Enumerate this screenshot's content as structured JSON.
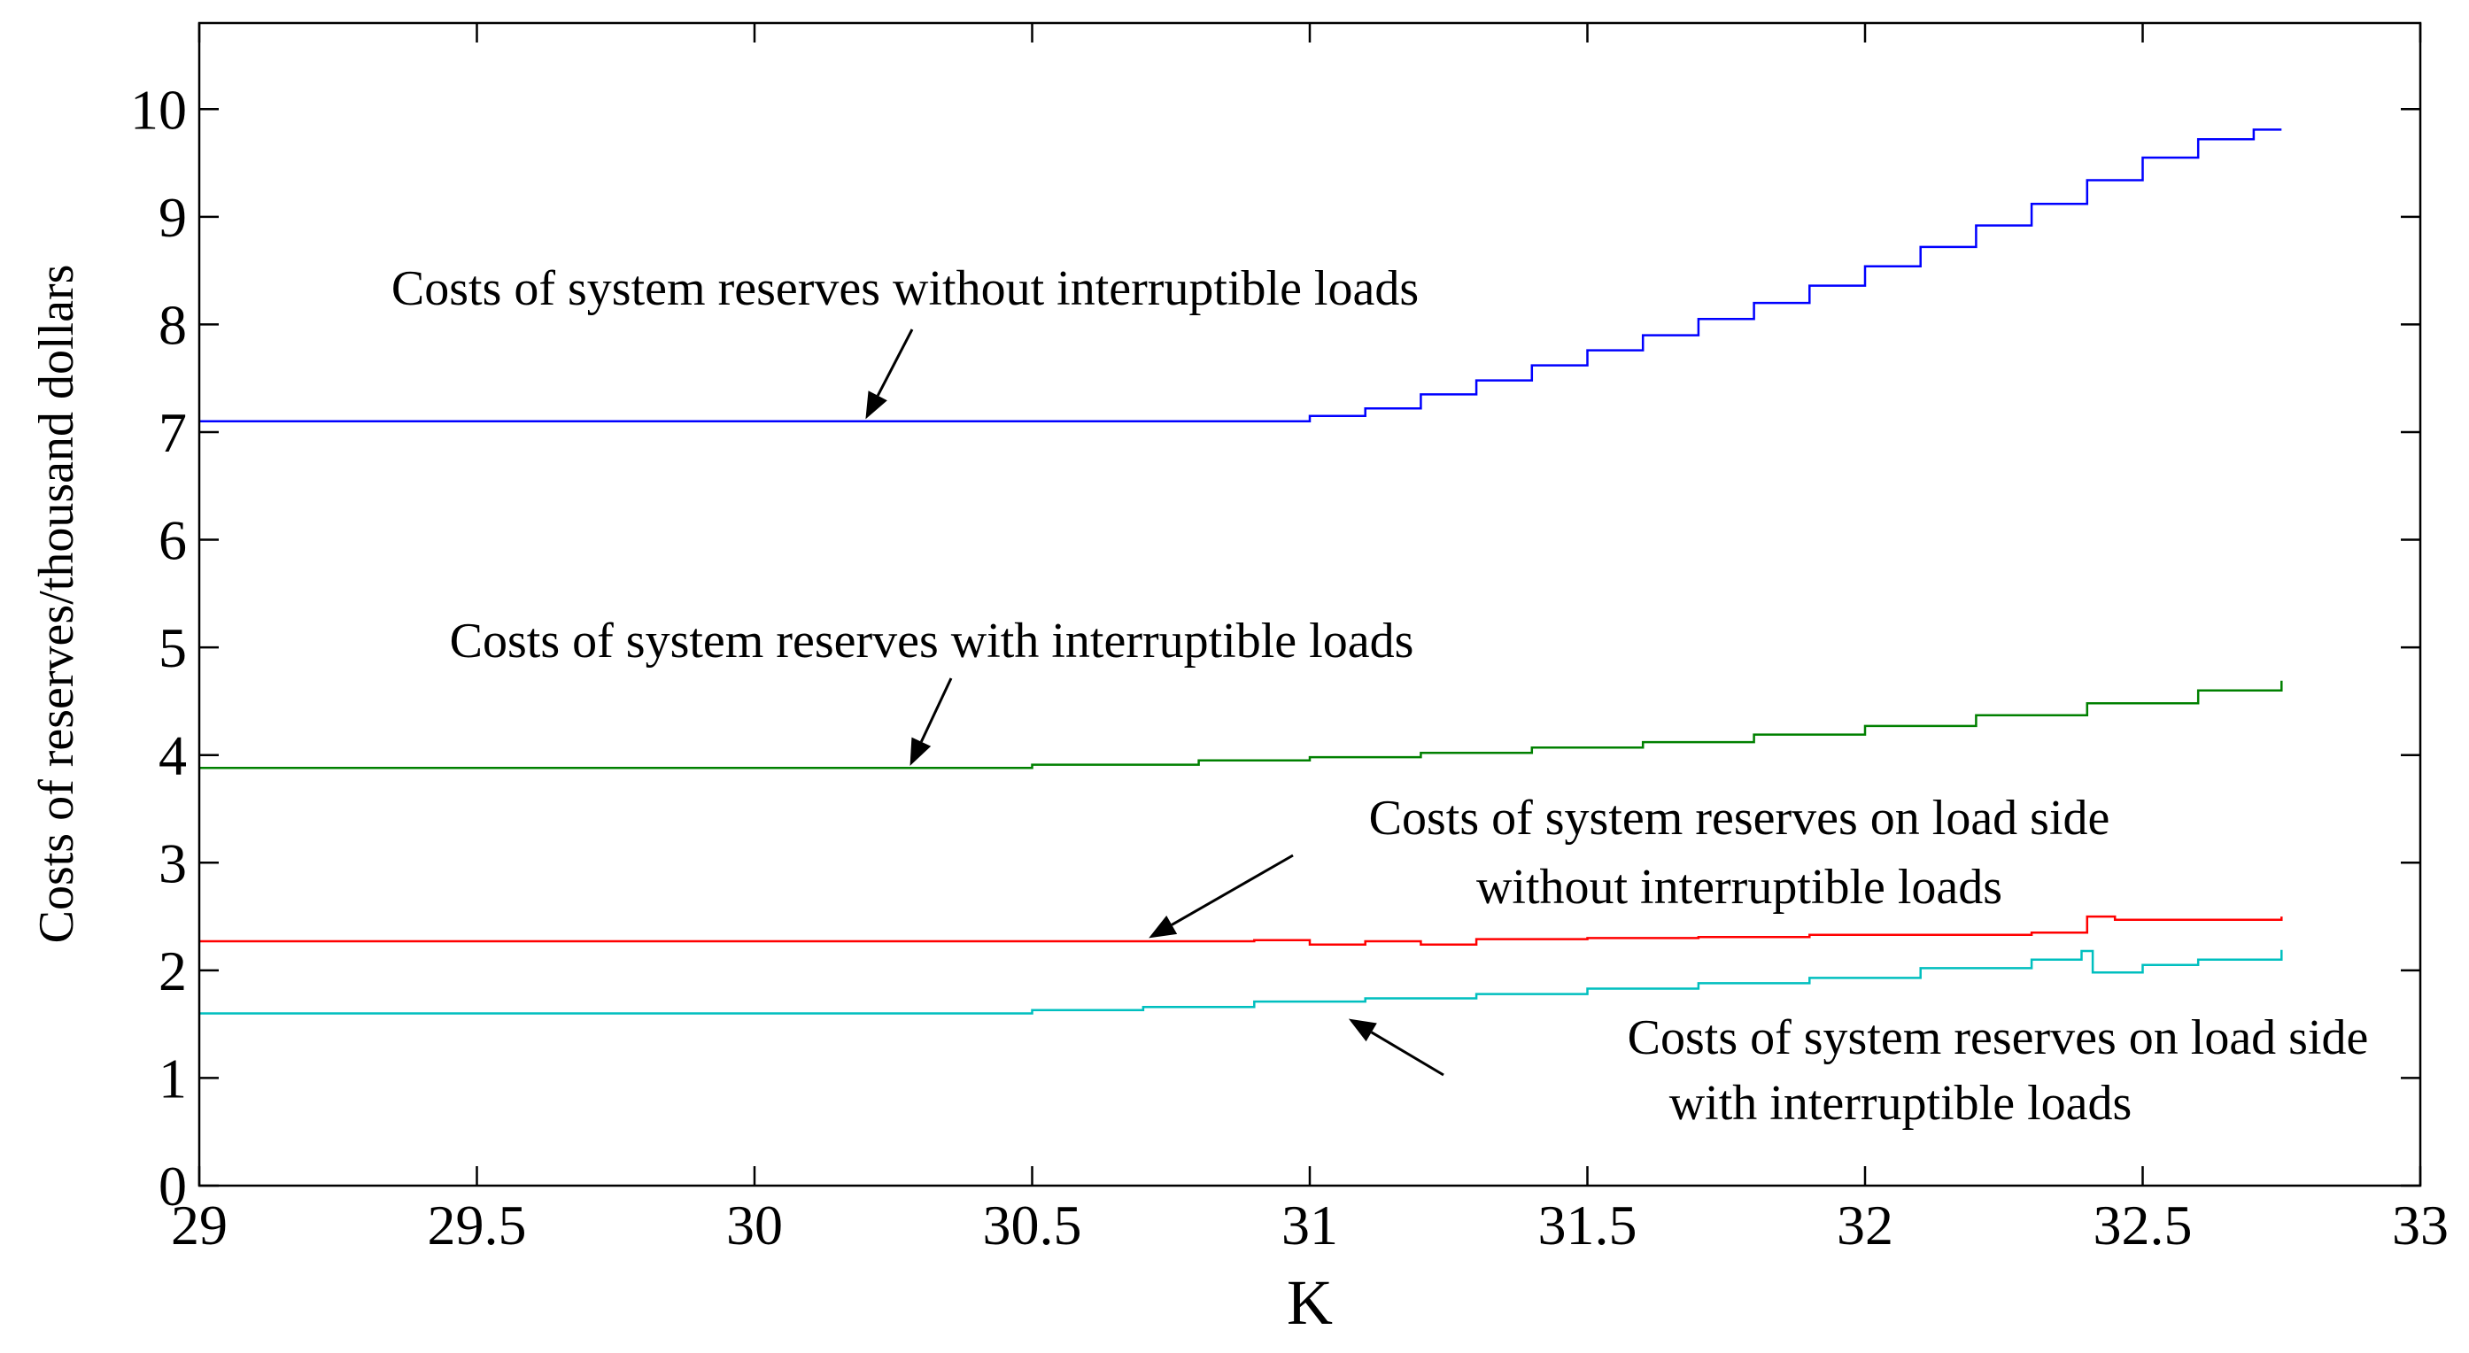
{
  "chart_data": {
    "type": "line",
    "title": "",
    "xlabel": "K",
    "ylabel": "Costs of reserves/thousand dollars",
    "xlim": [
      29,
      33
    ],
    "ylim": [
      0,
      10.8
    ],
    "xticks": [
      29,
      29.5,
      30,
      30.5,
      31,
      31.5,
      32,
      32.5,
      33
    ],
    "xtick_labels": [
      "29",
      "29.5",
      "30",
      "30.5",
      "31",
      "31.5",
      "32",
      "32.5",
      "33"
    ],
    "yticks": [
      0,
      1,
      2,
      3,
      4,
      5,
      6,
      7,
      8,
      9,
      10
    ],
    "ytick_labels": [
      "0",
      "1",
      "2",
      "3",
      "4",
      "5",
      "6",
      "7",
      "8",
      "9",
      "10"
    ],
    "grid": false,
    "series": [
      {
        "name": "Costs of system reserves without interruptible loads",
        "color": "#0000ff",
        "x": [
          29,
          30.95,
          31.0,
          31.1,
          31.2,
          31.3,
          31.4,
          31.5,
          31.6,
          31.7,
          31.8,
          31.9,
          32.0,
          32.1,
          32.2,
          32.3,
          32.4,
          32.5,
          32.6,
          32.7,
          32.75
        ],
        "y": [
          7.1,
          7.1,
          7.15,
          7.22,
          7.35,
          7.48,
          7.62,
          7.76,
          7.9,
          8.05,
          8.2,
          8.36,
          8.54,
          8.72,
          8.92,
          9.12,
          9.34,
          9.55,
          9.72,
          9.81,
          9.81
        ]
      },
      {
        "name": "Costs of system reserves with interruptible loads",
        "color": "#008000",
        "x": [
          29,
          30.2,
          30.5,
          30.8,
          31.0,
          31.2,
          31.4,
          31.6,
          31.8,
          32.0,
          32.2,
          32.4,
          32.6,
          32.75
        ],
        "y": [
          3.88,
          3.88,
          3.91,
          3.95,
          3.98,
          4.02,
          4.07,
          4.12,
          4.19,
          4.27,
          4.37,
          4.48,
          4.6,
          4.69
        ]
      },
      {
        "name": "Costs of system reserves on load side without interruptible loads",
        "color": "#ff0000",
        "x": [
          29,
          30.5,
          30.7,
          30.9,
          31.0,
          31.1,
          31.2,
          31.3,
          31.5,
          31.7,
          31.9,
          32.1,
          32.3,
          32.39,
          32.4,
          32.45,
          32.5,
          32.75
        ],
        "y": [
          2.27,
          2.27,
          2.27,
          2.28,
          2.24,
          2.27,
          2.24,
          2.29,
          2.3,
          2.31,
          2.33,
          2.33,
          2.35,
          2.35,
          2.5,
          2.47,
          2.47,
          2.5
        ]
      },
      {
        "name": "Costs of system reserves on load side with interruptible loads",
        "color": "#00bfbf",
        "x": [
          29,
          30.3,
          30.5,
          30.7,
          30.9,
          31.1,
          31.3,
          31.5,
          31.7,
          31.9,
          32.1,
          32.3,
          32.39,
          32.41,
          32.5,
          32.6,
          32.75
        ],
        "y": [
          1.6,
          1.6,
          1.63,
          1.66,
          1.71,
          1.74,
          1.78,
          1.83,
          1.88,
          1.93,
          2.02,
          2.1,
          2.18,
          1.98,
          2.05,
          2.1,
          2.19
        ]
      }
    ],
    "annotations": [
      {
        "lines": [
          "Costs of system reserves without interruptible loads"
        ],
        "arrow_to": [
          30.2,
          7.12
        ]
      },
      {
        "lines": [
          "Costs of system reserves with interruptible loads"
        ],
        "arrow_to": [
          30.28,
          3.9
        ]
      },
      {
        "lines": [
          "Costs of system reserves on load side",
          "without interruptible loads"
        ],
        "arrow_to": [
          30.71,
          2.3
        ]
      },
      {
        "lines": [
          "Costs of system reserves on load side",
          "with interruptible loads"
        ],
        "arrow_to": [
          31.07,
          1.55
        ]
      }
    ]
  }
}
